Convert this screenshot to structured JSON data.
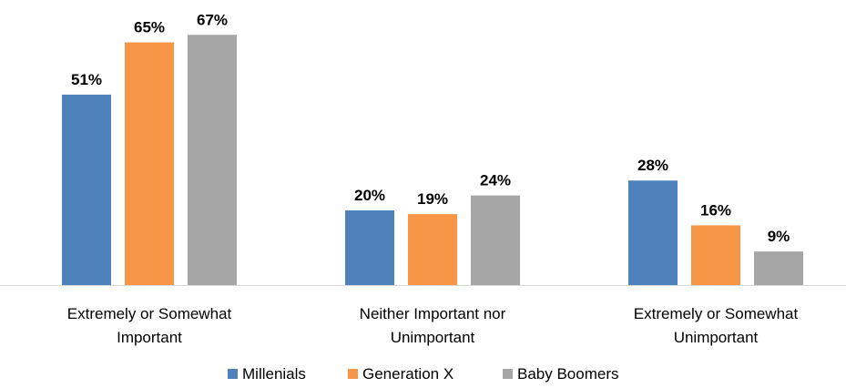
{
  "chart_data": {
    "type": "bar",
    "categories": [
      [
        "Extremely or Somewhat",
        "Important"
      ],
      [
        "Neither Important nor",
        "Unimportant"
      ],
      [
        "Extremely or Somewhat",
        "Unimportant"
      ]
    ],
    "series": [
      {
        "name": "Millenials",
        "values": [
          51,
          20,
          28
        ],
        "labels": [
          "51%",
          "20%",
          "28%"
        ],
        "color": "#4F81BD"
      },
      {
        "name": "Generation X",
        "values": [
          65,
          19,
          16
        ],
        "labels": [
          "65%",
          "19%",
          "16%"
        ],
        "color": "#F79646"
      },
      {
        "name": "Baby Boomers",
        "values": [
          67,
          24,
          9
        ],
        "labels": [
          "67%",
          "24%",
          "9%"
        ],
        "color": "#A5A5A5"
      }
    ],
    "ylim": [
      0,
      70
    ],
    "grid": false,
    "legend_position": "bottom",
    "axis_color": "#D9D9D9"
  }
}
